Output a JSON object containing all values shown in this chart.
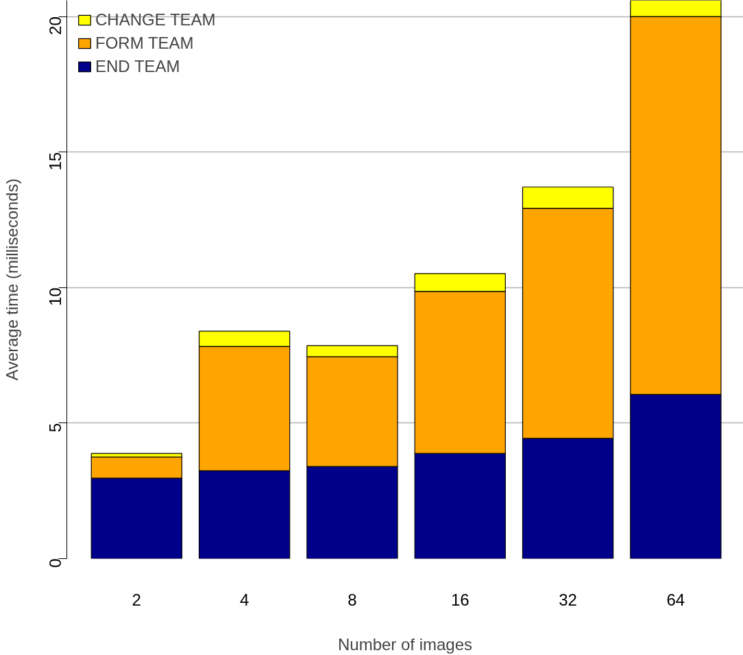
{
  "chart_data": {
    "type": "bar",
    "stacked": true,
    "xlabel": "Number of images",
    "ylabel": "Average time (milliseconds)",
    "categories": [
      "2",
      "4",
      "8",
      "16",
      "32",
      "64"
    ],
    "series": [
      {
        "name": "END TEAM",
        "color": "#00008b",
        "values": [
          2.97,
          3.24,
          3.4,
          3.88,
          4.44,
          6.06
        ]
      },
      {
        "name": "FORM TEAM",
        "color": "#ffa500",
        "values": [
          0.78,
          4.59,
          4.05,
          5.98,
          8.49,
          13.94
        ]
      },
      {
        "name": "CHANGE TEAM",
        "color": "#ffff00",
        "values": [
          0.13,
          0.56,
          0.41,
          0.66,
          0.78,
          0.6
        ]
      }
    ],
    "ylim": [
      0,
      20.6
    ],
    "yticks": [
      0,
      5,
      10,
      15,
      20
    ],
    "grid": "y",
    "legend": "top left"
  }
}
